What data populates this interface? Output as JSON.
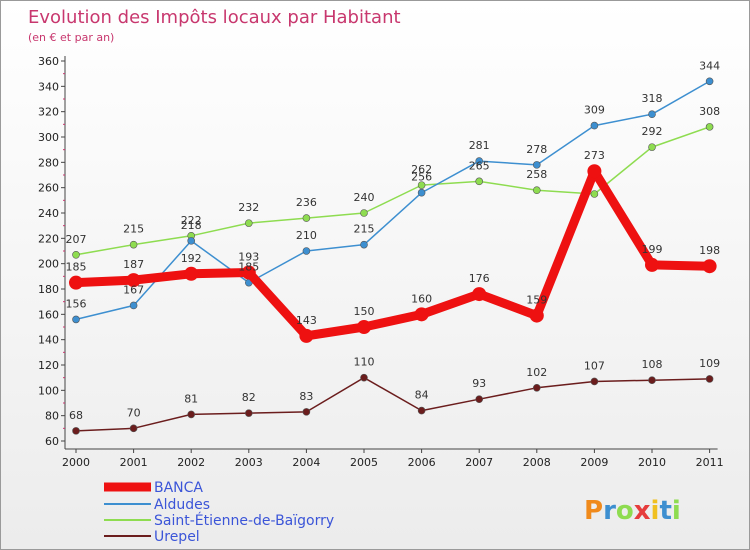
{
  "chart_data": {
    "type": "line",
    "title": "Evolution des Impôts locaux par Habitant",
    "subtitle": "(en € et par an)",
    "x": [
      "2000",
      "2001",
      "2002",
      "2003",
      "2004",
      "2005",
      "2006",
      "2007",
      "2008",
      "2009",
      "2010",
      "2011"
    ],
    "ylim": [
      60,
      360
    ],
    "yticks": [
      60,
      80,
      100,
      120,
      140,
      160,
      180,
      200,
      220,
      240,
      260,
      280,
      300,
      320,
      340,
      360
    ],
    "grid": false,
    "legend": "bottom-left",
    "series": [
      {
        "name": "BANCA",
        "color": "#ee1111",
        "values": [
          185,
          187,
          192,
          193,
          143,
          150,
          160,
          176,
          159,
          273,
          199,
          198
        ]
      },
      {
        "name": "Aldudes",
        "color": "#3d8fd0",
        "values": [
          156,
          167,
          218,
          185,
          210,
          215,
          256,
          281,
          278,
          309,
          318,
          344
        ]
      },
      {
        "name": "Saint-Étienne-de-Baïgorry",
        "color": "#8edc50",
        "values": [
          207,
          215,
          222,
          232,
          236,
          240,
          262,
          265,
          258,
          255,
          292,
          308
        ]
      },
      {
        "name": "Urepel",
        "color": "#6b1d1d",
        "values": [
          68,
          70,
          81,
          82,
          83,
          110,
          84,
          93,
          102,
          107,
          108,
          109
        ]
      }
    ],
    "data_labels": [
      [
        185,
        187,
        192,
        193,
        143,
        150,
        160,
        176,
        159,
        273,
        199,
        198
      ],
      [
        156,
        167,
        218,
        185,
        210,
        215,
        256,
        281,
        278,
        309,
        318,
        344
      ],
      [
        207,
        215,
        222,
        232,
        236,
        240,
        262,
        265,
        258,
        null,
        292,
        308
      ],
      [
        68,
        70,
        81,
        82,
        83,
        110,
        84,
        93,
        102,
        107,
        108,
        109
      ]
    ]
  },
  "logo": {
    "text": "Proxiti"
  }
}
